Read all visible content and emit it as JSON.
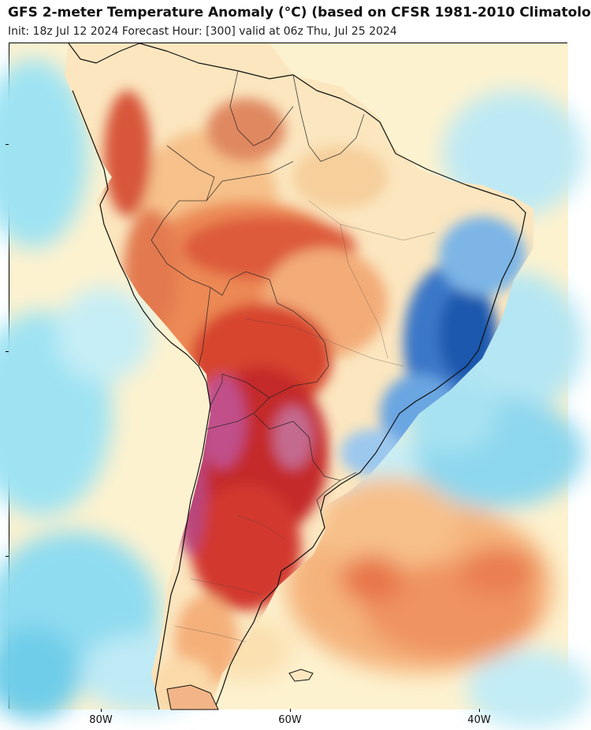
{
  "header": {
    "title": "GFS 2-meter Temperature Anomaly (°C) (based on CFSR 1981-2010 Climatolo",
    "subtitle": "Init: 18z Jul 12 2024   Forecast Hour: [300]   valid at 06z Thu, Jul 25 2024"
  },
  "map": {
    "region": "South America",
    "variable": "2-meter temperature anomaly",
    "x_tick_labels": [
      "80W",
      "60W",
      "40W"
    ],
    "colors": {
      "ocean_cold": "#7fd9ee",
      "ocean_cool": "#b9ecf6",
      "near_normal": "#fdf2cf",
      "warm_light": "#f7c98c",
      "warm": "#ef8a55",
      "hot": "#d9442e",
      "very_hot": "#b3202a",
      "extreme": "#c0508a",
      "cold_land": "#2a62b8",
      "cold_land_light": "#5a9be0"
    }
  }
}
